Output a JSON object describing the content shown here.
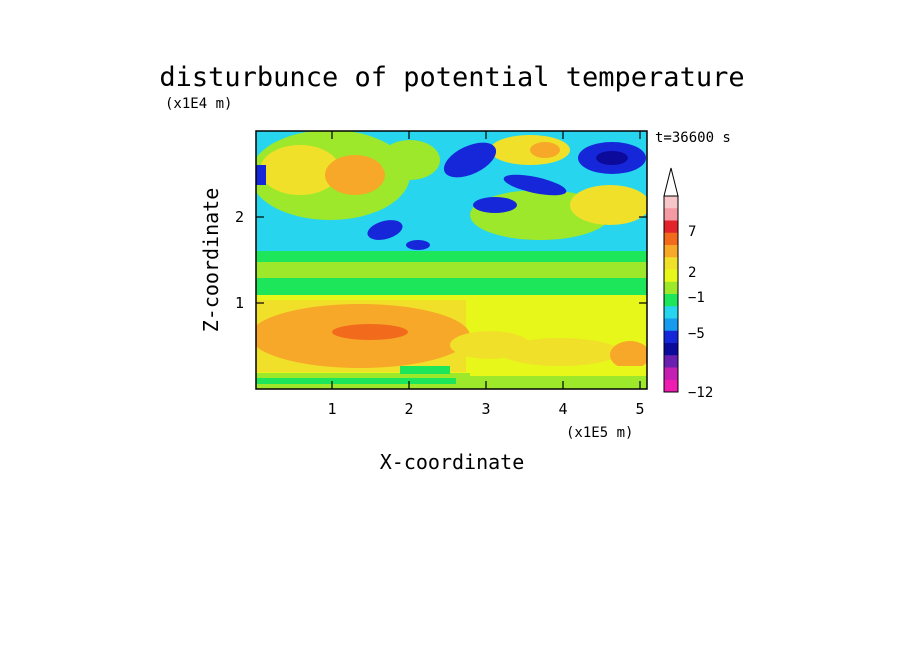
{
  "chart_data": {
    "type": "heatmap",
    "title": "disturbunce of potential temperature",
    "time_label": "t=36600 s",
    "xlabel": "X-coordinate",
    "ylabel": "Z-coordinate",
    "x_unit": "(x1E5 m)",
    "y_unit": "(x1E4 m)",
    "xlim": [
      0,
      5.1
    ],
    "ylim": [
      0,
      3.0
    ],
    "x_ticks": [
      1,
      2,
      3,
      4,
      5
    ],
    "y_ticks": [
      1,
      2
    ],
    "x_tick_labels": [
      "1",
      "2",
      "3",
      "4",
      "5"
    ],
    "y_tick_labels": [
      "1",
      "2"
    ],
    "colorbar": {
      "orientation": "vertical",
      "placement": "right",
      "tick_labels": [
        "7",
        "2",
        "−1",
        "−5",
        "−12"
      ],
      "colors_top_to_bottom": [
        "#f7c6c8",
        "#f49aa2",
        "#e3242b",
        "#f26b1d",
        "#f7a828",
        "#f1e02a",
        "#e8f71a",
        "#9de82a",
        "#1ee65a",
        "#27d6ee",
        "#169bef",
        "#1627d9",
        "#0c0a9a",
        "#6a1fb0",
        "#c41fb2",
        "#ee1fb0"
      ]
    },
    "colors": {
      "warm_high": "#f26b1d",
      "warm": "#f7a828",
      "neutral_warm": "#e8f71a",
      "neutral_cool": "#1ee65a",
      "cool": "#27d6ee",
      "cold": "#1627d9"
    }
  }
}
